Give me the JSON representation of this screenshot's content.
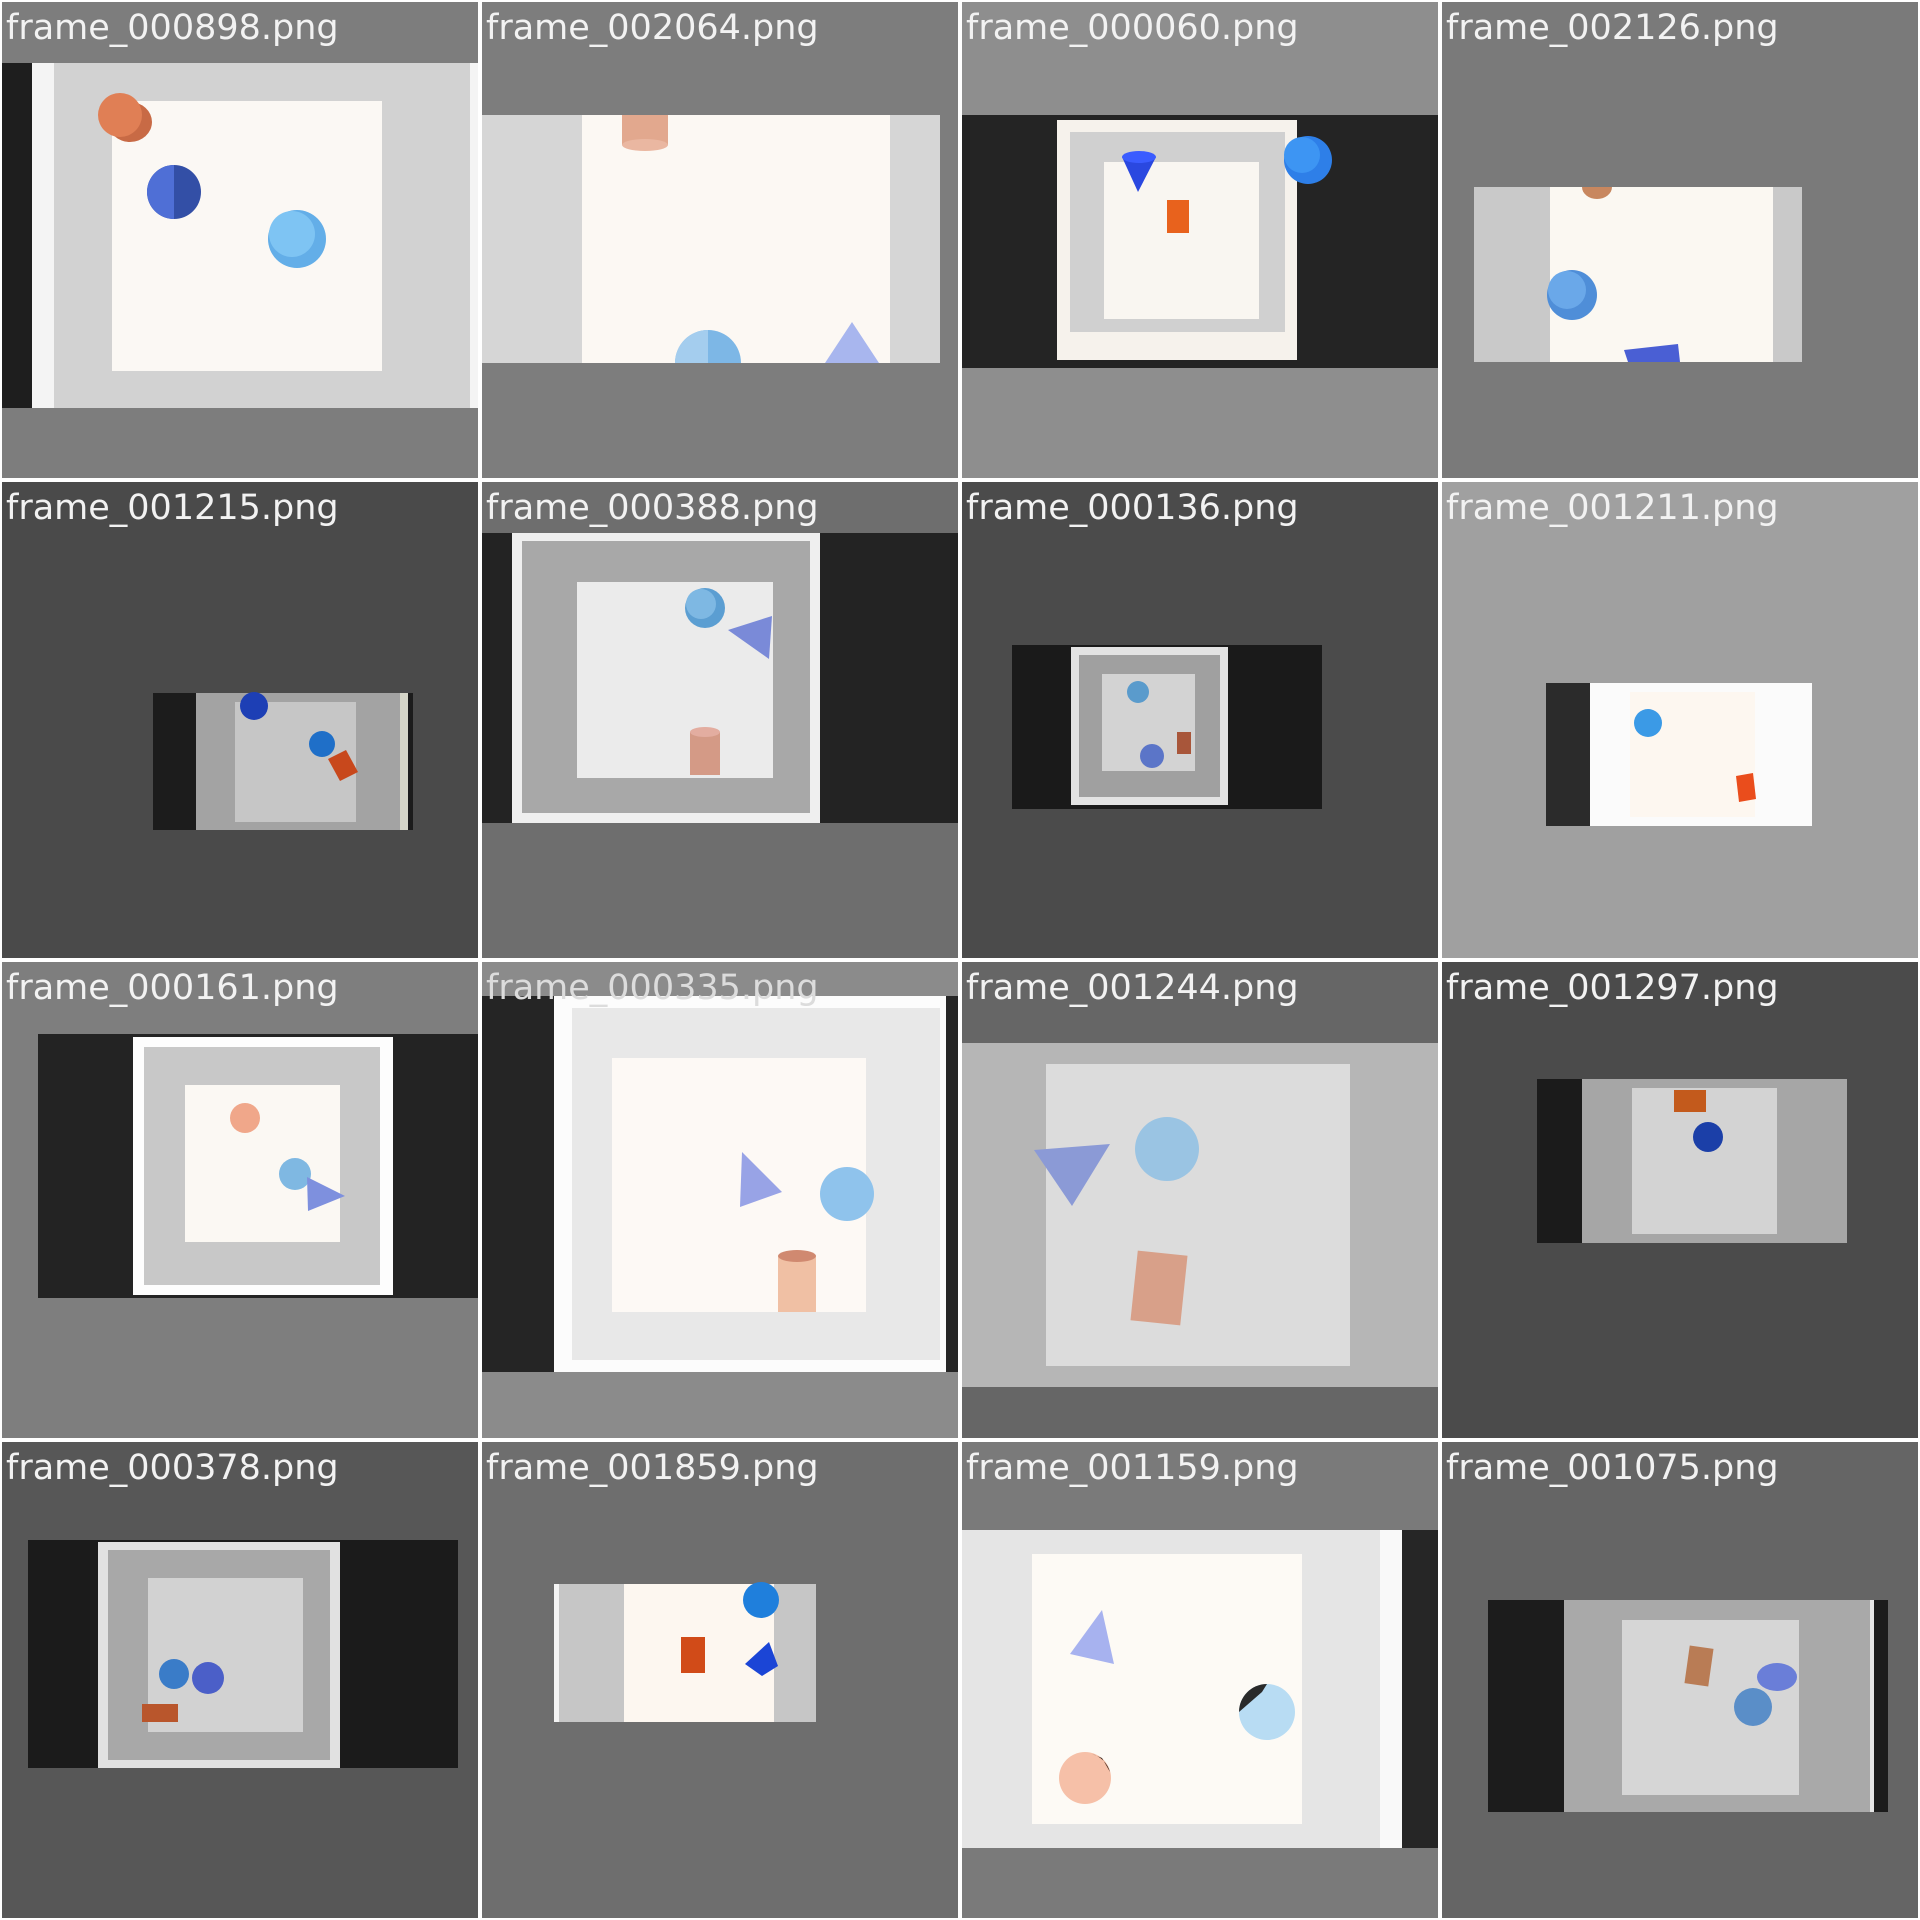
{
  "frames": [
    {
      "label": "frame_000898.png"
    },
    {
      "label": "frame_002064.png"
    },
    {
      "label": "frame_000060.png"
    },
    {
      "label": "frame_002126.png"
    },
    {
      "label": "frame_001215.png"
    },
    {
      "label": "frame_000388.png"
    },
    {
      "label": "frame_000136.png"
    },
    {
      "label": "frame_001211.png"
    },
    {
      "label": "frame_000161.png"
    },
    {
      "label": "frame_000335.png"
    },
    {
      "label": "frame_001244.png"
    },
    {
      "label": "frame_001297.png"
    },
    {
      "label": "frame_000378.png"
    },
    {
      "label": "frame_001859.png"
    },
    {
      "label": "frame_001159.png"
    },
    {
      "label": "frame_001075.png"
    }
  ]
}
